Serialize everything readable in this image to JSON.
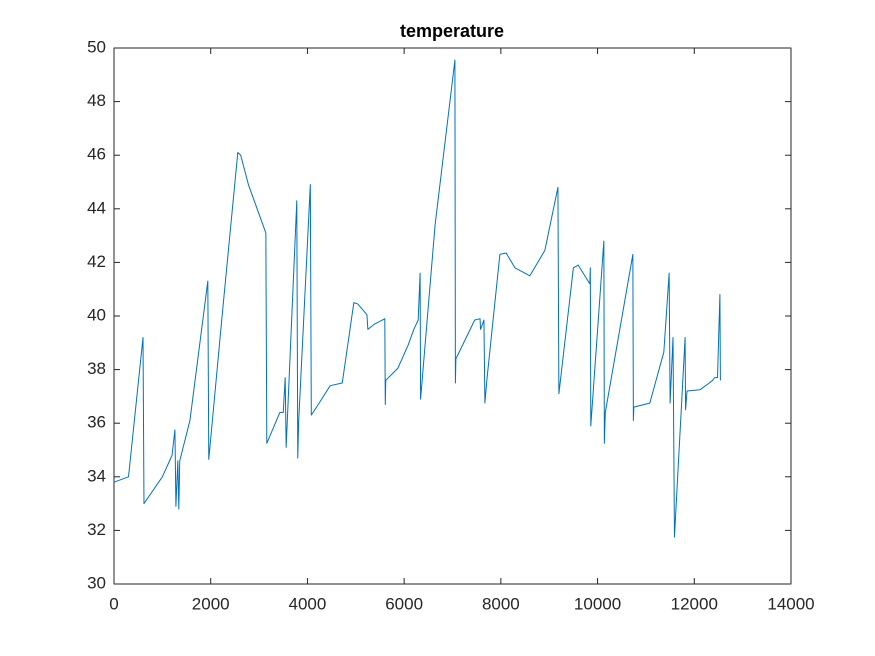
{
  "chart_data": {
    "type": "line",
    "title": "temperature",
    "x": [
      0,
      300,
      600,
      620,
      1000,
      1200,
      1260,
      1280,
      1320,
      1340,
      1360,
      1570,
      1940,
      1960,
      2230,
      2560,
      2620,
      2780,
      2920,
      3140,
      3160,
      3230,
      3430,
      3500,
      3540,
      3560,
      3780,
      3800,
      3820,
      4060,
      4080,
      4260,
      4470,
      4720,
      4960,
      5040,
      5230,
      5250,
      5390,
      5500,
      5600,
      5610,
      5620,
      5870,
      6080,
      6200,
      6290,
      6330,
      6340,
      6640,
      7050,
      7060,
      7070,
      7460,
      7570,
      7580,
      7650,
      7670,
      7710,
      7980,
      8110,
      8290,
      8600,
      8910,
      9180,
      9200,
      9500,
      9600,
      9840,
      9850,
      9860,
      10130,
      10140,
      10160,
      10730,
      10740,
      10750,
      11080,
      11370,
      11480,
      11500,
      11560,
      11590,
      11810,
      11820,
      11850,
      12120,
      12310,
      12380,
      12420,
      12480,
      12530,
      12540
    ],
    "series": [
      {
        "name": "temperature",
        "color": "#0072bd",
        "values": [
          33.8,
          34.0,
          39.2,
          33.0,
          34.0,
          34.8,
          35.75,
          32.9,
          34.6,
          32.8,
          34.6,
          36.1,
          41.3,
          34.65,
          39.9,
          46.1,
          46.0,
          44.9,
          44.2,
          43.1,
          35.25,
          35.55,
          36.4,
          36.4,
          37.7,
          35.1,
          44.3,
          34.7,
          36.1,
          44.9,
          36.3,
          36.8,
          37.4,
          37.5,
          40.5,
          40.45,
          40.05,
          39.5,
          39.7,
          39.8,
          39.9,
          36.7,
          37.6,
          38.05,
          38.9,
          39.5,
          39.85,
          41.6,
          36.9,
          43.4,
          49.55,
          37.5,
          38.4,
          39.85,
          39.9,
          39.5,
          39.85,
          36.75,
          37.6,
          42.3,
          42.35,
          41.8,
          41.5,
          42.45,
          44.8,
          37.1,
          41.8,
          41.9,
          41.2,
          41.8,
          35.9,
          42.8,
          35.25,
          36.4,
          42.3,
          36.1,
          36.6,
          36.75,
          38.65,
          41.6,
          36.75,
          39.2,
          31.75,
          39.2,
          36.5,
          37.2,
          37.25,
          37.5,
          37.6,
          37.7,
          37.7,
          40.8,
          37.6
        ]
      }
    ],
    "xlim": [
      0,
      14000
    ],
    "xticks": [
      0,
      2000,
      4000,
      6000,
      8000,
      10000,
      12000,
      14000
    ],
    "ylim": [
      30,
      50
    ],
    "yticks": [
      30,
      32,
      34,
      36,
      38,
      40,
      42,
      44,
      46,
      48,
      50
    ],
    "grid": false
  }
}
